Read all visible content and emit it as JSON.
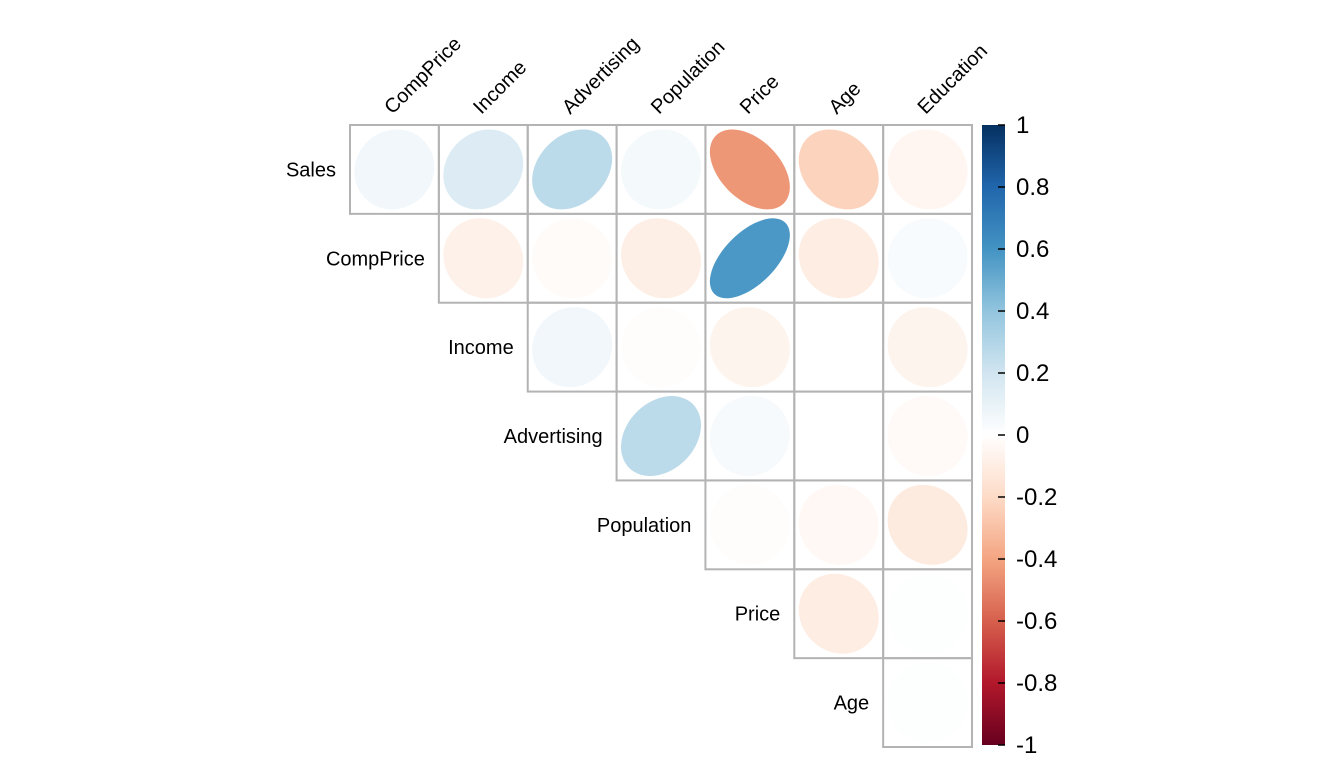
{
  "chart_data": {
    "type": "heatmap",
    "method": "ellipse",
    "layout": "upper-triangle",
    "row_labels": [
      "Sales",
      "CompPrice",
      "Income",
      "Advertising",
      "Population",
      "Price",
      "Age"
    ],
    "col_labels": [
      "CompPrice",
      "Income",
      "Advertising",
      "Population",
      "Price",
      "Age",
      "Education"
    ],
    "cells": [
      {
        "row": "Sales",
        "col": "CompPrice",
        "value": 0.06
      },
      {
        "row": "Sales",
        "col": "Income",
        "value": 0.15
      },
      {
        "row": "Sales",
        "col": "Advertising",
        "value": 0.27
      },
      {
        "row": "Sales",
        "col": "Population",
        "value": 0.05
      },
      {
        "row": "Sales",
        "col": "Price",
        "value": -0.44
      },
      {
        "row": "Sales",
        "col": "Age",
        "value": -0.23
      },
      {
        "row": "Sales",
        "col": "Education",
        "value": -0.05
      },
      {
        "row": "CompPrice",
        "col": "Income",
        "value": -0.08
      },
      {
        "row": "CompPrice",
        "col": "Advertising",
        "value": -0.02
      },
      {
        "row": "CompPrice",
        "col": "Population",
        "value": -0.09
      },
      {
        "row": "CompPrice",
        "col": "Price",
        "value": 0.58
      },
      {
        "row": "CompPrice",
        "col": "Age",
        "value": -0.1
      },
      {
        "row": "CompPrice",
        "col": "Education",
        "value": 0.03
      },
      {
        "row": "Income",
        "col": "Advertising",
        "value": 0.06
      },
      {
        "row": "Income",
        "col": "Population",
        "value": -0.01
      },
      {
        "row": "Income",
        "col": "Price",
        "value": -0.06
      },
      {
        "row": "Income",
        "col": "Age",
        "value": 0.0
      },
      {
        "row": "Income",
        "col": "Education",
        "value": -0.06
      },
      {
        "row": "Advertising",
        "col": "Population",
        "value": 0.27
      },
      {
        "row": "Advertising",
        "col": "Price",
        "value": 0.04
      },
      {
        "row": "Advertising",
        "col": "Age",
        "value": 0.0
      },
      {
        "row": "Advertising",
        "col": "Education",
        "value": -0.03
      },
      {
        "row": "Population",
        "col": "Price",
        "value": -0.01
      },
      {
        "row": "Population",
        "col": "Age",
        "value": -0.04
      },
      {
        "row": "Population",
        "col": "Education",
        "value": -0.11
      },
      {
        "row": "Price",
        "col": "Age",
        "value": -0.1
      },
      {
        "row": "Price",
        "col": "Education",
        "value": 0.01
      },
      {
        "row": "Age",
        "col": "Education",
        "value": 0.01
      }
    ],
    "colorbar": {
      "ticks": [
        "1",
        "0.8",
        "0.6",
        "0.4",
        "0.2",
        "0",
        "-0.2",
        "-0.4",
        "-0.6",
        "-0.8",
        "-1"
      ],
      "range": [
        -1,
        1
      ],
      "colors_low_to_high": [
        "#67001F",
        "#B2182B",
        "#D6604D",
        "#F4A582",
        "#FDDBC7",
        "#FFFFFF",
        "#D1E5F0",
        "#92C5DE",
        "#4393C3",
        "#2166AC",
        "#053061"
      ]
    }
  }
}
